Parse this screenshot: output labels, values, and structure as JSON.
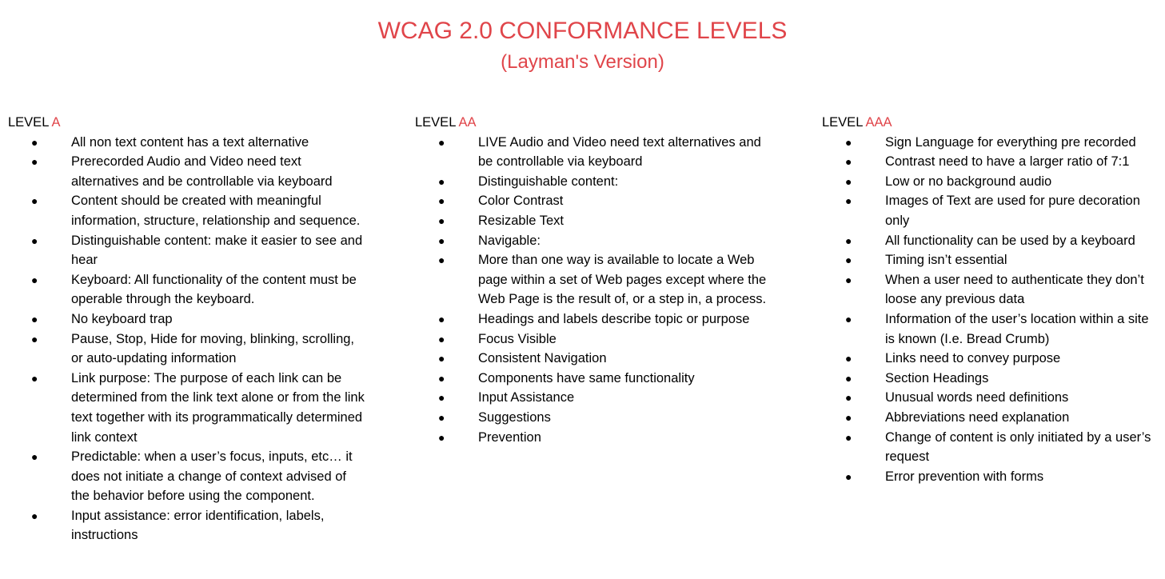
{
  "header": {
    "title": "WCAG 2.0 CONFORMANCE LEVELS",
    "subtitle": "(Layman's Version)"
  },
  "colors": {
    "accent": "#e0454a",
    "text": "#000000",
    "background": "#ffffff"
  },
  "levels": [
    {
      "prefix": "LEVEL ",
      "level": "A",
      "items": [
        "All non text content has a text alternative",
        "Prerecorded Audio and Video need text alternatives and be controllable via keyboard",
        "Content should be created with meaningful information, structure, relationship and sequence.",
        "Distinguishable content: make it easier to see and hear",
        "Keyboard: All functionality of the content must be operable through the keyboard.",
        "No keyboard trap",
        "Pause, Stop, Hide for moving, blinking, scrolling, or auto-updating information",
        "Link purpose: The purpose of each link can be determined from the link text alone or from the link text together with its programmatically determined link context",
        "Predictable: when a user’s focus, inputs, etc… it does not initiate a change of context advised of the behavior before using the component.",
        "Input assistance: error identification, labels, instructions"
      ]
    },
    {
      "prefix": "LEVEL ",
      "level": "AA",
      "items": [
        "LIVE Audio and Video need text alternatives and be controllable via keyboard",
        "Distinguishable content:",
        "Color Contrast",
        "Resizable Text",
        "Navigable:",
        "More than one way is available to locate a Web page within a set of Web pages except where the Web Page is the result of, or a step in, a process.",
        "Headings and labels describe topic or purpose",
        "Focus Visible",
        "Consistent Navigation",
        "Components have same functionality",
        "Input Assistance",
        "Suggestions",
        "Prevention"
      ]
    },
    {
      "prefix": "LEVEL ",
      "level": "AAA",
      "items": [
        "Sign Language for everything pre recorded",
        "Contrast need to have a larger ratio of 7:1",
        "Low or no background audio",
        "Images of Text are used for pure decoration only",
        "All functionality can be used by a keyboard",
        "Timing isn’t essential",
        "When a user need to authenticate they don’t loose any previous data",
        "Information of the user’s location within a site is known (I.e. Bread Crumb)",
        "Links need to convey purpose",
        "Section Headings",
        "Unusual words need definitions",
        "Abbreviations need explanation",
        "Change of content is only initiated by a user’s request",
        "Error prevention with forms"
      ]
    }
  ]
}
